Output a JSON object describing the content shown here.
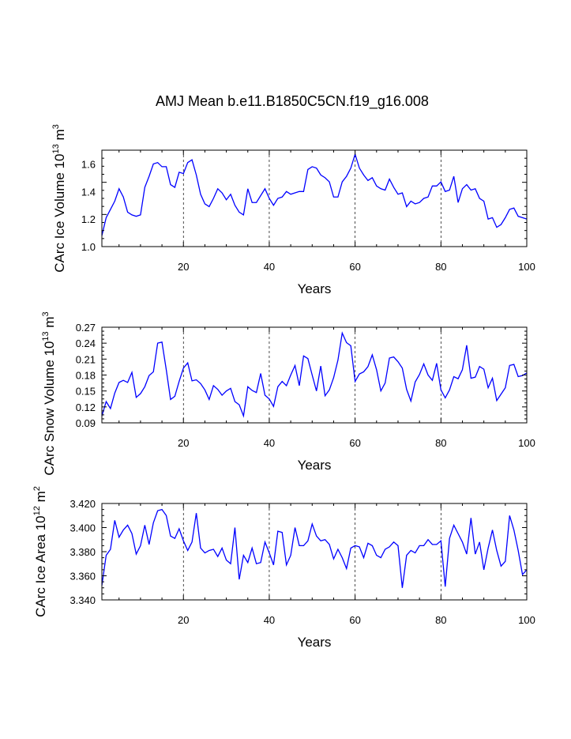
{
  "title": "AMJ Mean b.e11.B1850C5CN.f19_g16.008",
  "chart_data": [
    {
      "type": "line",
      "ylabel_main": "CArc Ice Volume 10",
      "ylabel_exp": "13",
      "ylabel_unit": " m",
      "ylabel_unit_exp": "3",
      "xlabel": "Years",
      "xlim": [
        1,
        100
      ],
      "ylim": [
        1.0,
        1.7
      ],
      "xticks": [
        20,
        40,
        60,
        80,
        100
      ],
      "xtick_labels": [
        "20",
        "40",
        "60",
        "80",
        "100"
      ],
      "yticks": [
        1.0,
        1.2,
        1.4,
        1.6
      ],
      "ytick_labels": [
        "1.0",
        "1.2",
        "1.4",
        "1.6"
      ],
      "grid_x": [
        20,
        40,
        60,
        80
      ],
      "series": [
        {
          "name": "CArc Ice Volume",
          "color": "#0000ff",
          "x": [
            1,
            2,
            3,
            4,
            5,
            6,
            7,
            8,
            9,
            10,
            11,
            12,
            13,
            14,
            15,
            16,
            17,
            18,
            19,
            20,
            21,
            22,
            23,
            24,
            25,
            26,
            27,
            28,
            29,
            30,
            31,
            32,
            33,
            34,
            35,
            36,
            37,
            38,
            39,
            40,
            41,
            42,
            43,
            44,
            45,
            46,
            47,
            48,
            49,
            50,
            51,
            52,
            53,
            54,
            55,
            56,
            57,
            58,
            59,
            60,
            61,
            62,
            63,
            64,
            65,
            66,
            67,
            68,
            69,
            70,
            71,
            72,
            73,
            74,
            75,
            76,
            77,
            78,
            79,
            80,
            81,
            82,
            83,
            84,
            85,
            86,
            87,
            88,
            89,
            90,
            91,
            92,
            93,
            94,
            95,
            96,
            97,
            98,
            99,
            100
          ],
          "values": [
            1.08,
            1.21,
            1.27,
            1.33,
            1.42,
            1.36,
            1.25,
            1.23,
            1.22,
            1.23,
            1.43,
            1.51,
            1.6,
            1.61,
            1.58,
            1.58,
            1.45,
            1.43,
            1.54,
            1.53,
            1.61,
            1.63,
            1.52,
            1.38,
            1.31,
            1.29,
            1.35,
            1.42,
            1.39,
            1.34,
            1.38,
            1.3,
            1.25,
            1.23,
            1.42,
            1.32,
            1.32,
            1.37,
            1.42,
            1.35,
            1.3,
            1.35,
            1.36,
            1.4,
            1.38,
            1.39,
            1.4,
            1.4,
            1.56,
            1.58,
            1.57,
            1.52,
            1.5,
            1.47,
            1.36,
            1.36,
            1.47,
            1.51,
            1.57,
            1.67,
            1.57,
            1.52,
            1.48,
            1.5,
            1.44,
            1.42,
            1.41,
            1.49,
            1.43,
            1.38,
            1.39,
            1.29,
            1.33,
            1.31,
            1.32,
            1.35,
            1.36,
            1.44,
            1.44,
            1.47,
            1.4,
            1.41,
            1.51,
            1.32,
            1.42,
            1.45,
            1.41,
            1.42,
            1.35,
            1.33,
            1.2,
            1.21,
            1.14,
            1.16,
            1.21,
            1.27,
            1.28,
            1.22,
            1.21,
            1.2
          ]
        }
      ]
    },
    {
      "type": "line",
      "ylabel_main": "CArc Snow Volume 10",
      "ylabel_exp": "13",
      "ylabel_unit": " m",
      "ylabel_unit_exp": "3",
      "xlabel": "Years",
      "xlim": [
        1,
        100
      ],
      "ylim": [
        0.09,
        0.27
      ],
      "xticks": [
        20,
        40,
        60,
        80,
        100
      ],
      "xtick_labels": [
        "20",
        "40",
        "60",
        "80",
        "100"
      ],
      "yticks": [
        0.09,
        0.12,
        0.15,
        0.18,
        0.21,
        0.24,
        0.27
      ],
      "ytick_labels": [
        "0.09",
        "0.12",
        "0.15",
        "0.18",
        "0.21",
        "0.24",
        "0.27"
      ],
      "grid_x": [
        20,
        40,
        60,
        80
      ],
      "series": [
        {
          "name": "CArc Snow Volume",
          "color": "#0000ff",
          "x": [
            1,
            2,
            3,
            4,
            5,
            6,
            7,
            8,
            9,
            10,
            11,
            12,
            13,
            14,
            15,
            16,
            17,
            18,
            19,
            20,
            21,
            22,
            23,
            24,
            25,
            26,
            27,
            28,
            29,
            30,
            31,
            32,
            33,
            34,
            35,
            36,
            37,
            38,
            39,
            40,
            41,
            42,
            43,
            44,
            45,
            46,
            47,
            48,
            49,
            50,
            51,
            52,
            53,
            54,
            55,
            56,
            57,
            58,
            59,
            60,
            61,
            62,
            63,
            64,
            65,
            66,
            67,
            68,
            69,
            70,
            71,
            72,
            73,
            74,
            75,
            76,
            77,
            78,
            79,
            80,
            81,
            82,
            83,
            84,
            85,
            86,
            87,
            88,
            89,
            90,
            91,
            92,
            93,
            94,
            95,
            96,
            97,
            98,
            99,
            100
          ],
          "values": [
            0.103,
            0.13,
            0.117,
            0.146,
            0.166,
            0.17,
            0.166,
            0.185,
            0.138,
            0.145,
            0.158,
            0.179,
            0.186,
            0.24,
            0.242,
            0.19,
            0.134,
            0.14,
            0.168,
            0.193,
            0.203,
            0.169,
            0.171,
            0.164,
            0.152,
            0.134,
            0.16,
            0.153,
            0.142,
            0.15,
            0.155,
            0.13,
            0.124,
            0.103,
            0.158,
            0.151,
            0.147,
            0.183,
            0.142,
            0.135,
            0.121,
            0.158,
            0.168,
            0.16,
            0.18,
            0.198,
            0.16,
            0.216,
            0.211,
            0.18,
            0.15,
            0.197,
            0.141,
            0.152,
            0.175,
            0.208,
            0.259,
            0.241,
            0.235,
            0.168,
            0.182,
            0.186,
            0.196,
            0.218,
            0.19,
            0.15,
            0.165,
            0.212,
            0.214,
            0.205,
            0.193,
            0.153,
            0.131,
            0.167,
            0.181,
            0.201,
            0.18,
            0.17,
            0.202,
            0.152,
            0.137,
            0.152,
            0.177,
            0.173,
            0.19,
            0.236,
            0.174,
            0.176,
            0.196,
            0.191,
            0.156,
            0.174,
            0.132,
            0.144,
            0.156,
            0.198,
            0.2,
            0.177,
            0.179,
            0.184
          ]
        }
      ]
    },
    {
      "type": "line",
      "ylabel_main": "CArc Ice Area 10",
      "ylabel_exp": "12",
      "ylabel_unit": " m",
      "ylabel_unit_exp": "2",
      "xlabel": "Years",
      "xlim": [
        1,
        100
      ],
      "ylim": [
        3.34,
        3.42
      ],
      "xticks": [
        20,
        40,
        60,
        80,
        100
      ],
      "xtick_labels": [
        "20",
        "40",
        "60",
        "80",
        "100"
      ],
      "yticks": [
        3.34,
        3.36,
        3.38,
        3.4,
        3.42
      ],
      "ytick_labels": [
        "3.340",
        "3.360",
        "3.380",
        "3.400",
        "3.420"
      ],
      "grid_x": [
        20,
        40,
        60,
        80
      ],
      "series": [
        {
          "name": "CArc Ice Area",
          "color": "#0000ff",
          "x": [
            1,
            2,
            3,
            4,
            5,
            6,
            7,
            8,
            9,
            10,
            11,
            12,
            13,
            14,
            15,
            16,
            17,
            18,
            19,
            20,
            21,
            22,
            23,
            24,
            25,
            26,
            27,
            28,
            29,
            30,
            31,
            32,
            33,
            34,
            35,
            36,
            37,
            38,
            39,
            40,
            41,
            42,
            43,
            44,
            45,
            46,
            47,
            48,
            49,
            50,
            51,
            52,
            53,
            54,
            55,
            56,
            57,
            58,
            59,
            60,
            61,
            62,
            63,
            64,
            65,
            66,
            67,
            68,
            69,
            70,
            71,
            72,
            73,
            74,
            75,
            76,
            77,
            78,
            79,
            80,
            81,
            82,
            83,
            84,
            85,
            86,
            87,
            88,
            89,
            90,
            91,
            92,
            93,
            94,
            95,
            96,
            97,
            98,
            99,
            100
          ],
          "values": [
            3.352,
            3.377,
            3.382,
            3.406,
            3.392,
            3.398,
            3.402,
            3.395,
            3.378,
            3.385,
            3.402,
            3.386,
            3.404,
            3.414,
            3.415,
            3.41,
            3.393,
            3.391,
            3.399,
            3.389,
            3.381,
            3.388,
            3.412,
            3.383,
            3.379,
            3.381,
            3.382,
            3.376,
            3.383,
            3.373,
            3.37,
            3.4,
            3.357,
            3.377,
            3.371,
            3.383,
            3.37,
            3.371,
            3.388,
            3.379,
            3.369,
            3.397,
            3.396,
            3.369,
            3.377,
            3.4,
            3.385,
            3.385,
            3.389,
            3.403,
            3.393,
            3.389,
            3.39,
            3.386,
            3.374,
            3.382,
            3.375,
            3.366,
            3.383,
            3.385,
            3.384,
            3.375,
            3.387,
            3.385,
            3.377,
            3.375,
            3.382,
            3.384,
            3.388,
            3.385,
            3.35,
            3.377,
            3.381,
            3.379,
            3.385,
            3.385,
            3.39,
            3.386,
            3.386,
            3.389,
            3.351,
            3.391,
            3.402,
            3.395,
            3.388,
            3.378,
            3.408,
            3.378,
            3.388,
            3.365,
            3.383,
            3.398,
            3.381,
            3.368,
            3.372,
            3.41,
            3.398,
            3.381,
            3.361,
            3.365
          ]
        }
      ]
    }
  ]
}
